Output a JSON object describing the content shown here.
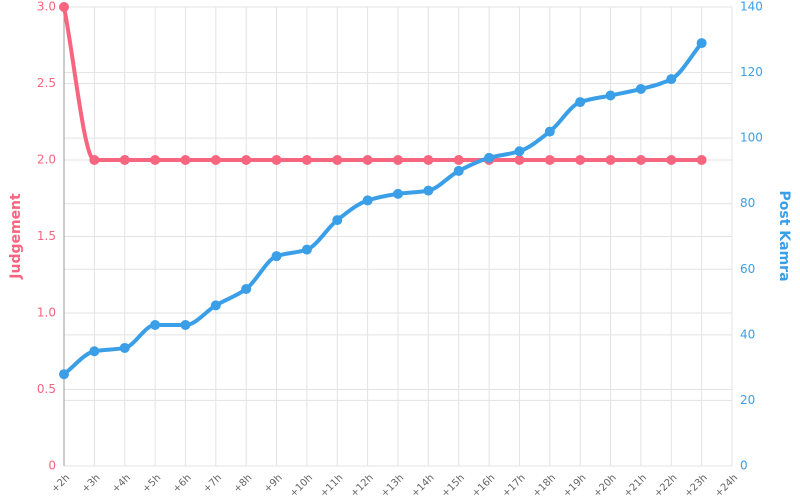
{
  "chart_data": {
    "type": "line",
    "categories": [
      "+2h",
      "+3h",
      "+4h",
      "+5h",
      "+6h",
      "+7h",
      "+8h",
      "+9h",
      "+10h",
      "+11h",
      "+12h",
      "+13h",
      "+14h",
      "+15h",
      "+16h",
      "+17h",
      "+18h",
      "+19h",
      "+20h",
      "+21h",
      "+22h",
      "+23h",
      "+24h"
    ],
    "ylabel": "Judgement",
    "y2label": "Post Kamra",
    "ylim": [
      0,
      3
    ],
    "yticks": [
      0,
      0.5,
      {
        "value": 1,
        "label": "1.0"
      },
      1.5,
      {
        "value": 2,
        "label": "2.0"
      },
      2.5,
      {
        "value": 3,
        "label": "3.0"
      }
    ],
    "y2lim": [
      0,
      140
    ],
    "y2ticks": [
      0,
      20,
      40,
      60,
      80,
      100,
      120,
      140
    ],
    "grid": true,
    "series": [
      {
        "name": "Judgement",
        "color": "#f7657f",
        "values": [
          3,
          2,
          2,
          2,
          2,
          2,
          2,
          2,
          2,
          2,
          2,
          2,
          2,
          2,
          2,
          2,
          2,
          2,
          2,
          2,
          2,
          2,
          null
        ]
      },
      {
        "name": "Post Kamra",
        "color": "#3b9fe7",
        "axis": "y2",
        "values": [
          28,
          35,
          36,
          43,
          43,
          49,
          54,
          64,
          66,
          75,
          81,
          83,
          84,
          90,
          94,
          96,
          102,
          111,
          113,
          115,
          118,
          129,
          null
        ]
      }
    ]
  }
}
